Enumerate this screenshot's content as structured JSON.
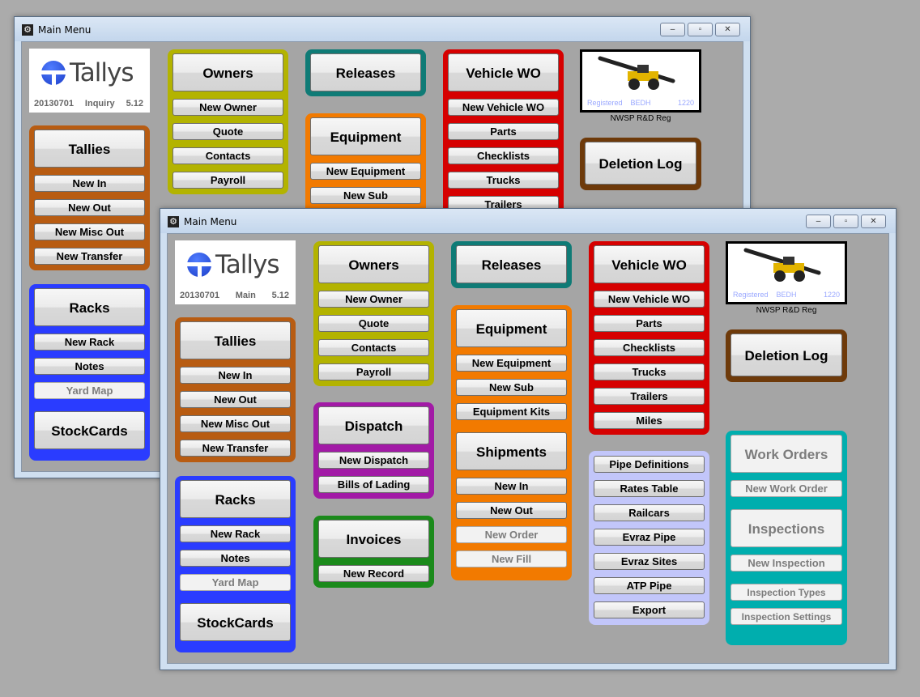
{
  "windows": [
    {
      "title": "Main Menu",
      "logo": {
        "brand": "Tallys",
        "build": "20130701",
        "mode": "Inquiry",
        "version": "5.12"
      }
    },
    {
      "title": "Main Menu",
      "logo": {
        "brand": "Tallys",
        "build": "20130701",
        "mode": "Main",
        "version": "5.12"
      }
    }
  ],
  "window_controls": {
    "minimize": "minimize-icon",
    "maximize": "maximize-icon",
    "close": "close-icon"
  },
  "image_panel": {
    "registered": "Registered",
    "code": "BEDH",
    "number": "1220",
    "caption": "NWSP R&D Reg"
  },
  "groups": [
    {
      "id": "owners",
      "color": "#b3b300",
      "sections": [
        {
          "header": "Owners",
          "items": [
            {
              "label": "New Owner"
            },
            {
              "label": "Quote"
            },
            {
              "label": "Contacts"
            },
            {
              "label": "Payroll"
            }
          ]
        }
      ]
    },
    {
      "id": "releases",
      "color": "#0f7b76",
      "sections": [
        {
          "header": "Releases",
          "items": []
        }
      ]
    },
    {
      "id": "vehicle-wo",
      "color": "#d60000",
      "sections": [
        {
          "header": "Vehicle WO",
          "items": [
            {
              "label": "New Vehicle WO"
            },
            {
              "label": "Parts"
            },
            {
              "label": "Checklists"
            },
            {
              "label": "Trucks"
            },
            {
              "label": "Trailers"
            },
            {
              "label": "Miles"
            }
          ]
        }
      ]
    },
    {
      "id": "tallies",
      "color": "#b85c12",
      "sections": [
        {
          "header": "Tallies",
          "items": [
            {
              "label": "New In"
            },
            {
              "label": "New Out"
            },
            {
              "label": "New Misc Out"
            },
            {
              "label": "New Transfer"
            }
          ]
        }
      ]
    },
    {
      "id": "racks",
      "color": "#2a3cff",
      "sections": [
        {
          "header": "Racks",
          "items": [
            {
              "label": "New Rack"
            },
            {
              "label": "Notes"
            },
            {
              "label": "Yard Map",
              "disabled": true
            }
          ]
        },
        {
          "header": "StockCards",
          "items": []
        }
      ]
    },
    {
      "id": "dispatch",
      "color": "#a21aa6",
      "sections": [
        {
          "header": "Dispatch",
          "items": [
            {
              "label": "New Dispatch"
            },
            {
              "label": "Bills of Lading"
            }
          ]
        }
      ]
    },
    {
      "id": "invoices",
      "color": "#1b8a1b",
      "sections": [
        {
          "header": "Invoices",
          "items": [
            {
              "label": "New Record"
            }
          ]
        }
      ]
    },
    {
      "id": "equipment",
      "color": "#f27a00",
      "sections": [
        {
          "header": "Equipment",
          "items": [
            {
              "label": "New Equipment"
            },
            {
              "label": "New Sub"
            },
            {
              "label": "Equipment Kits"
            }
          ]
        },
        {
          "header": "Shipments",
          "items": [
            {
              "label": "New In"
            },
            {
              "label": "New Out"
            },
            {
              "label": "New Order",
              "disabled": true
            },
            {
              "label": "New Fill",
              "disabled": true
            }
          ]
        }
      ]
    },
    {
      "id": "misc",
      "color": "#c2c6fa",
      "sections": [
        {
          "items": [
            {
              "label": "Pipe Definitions"
            },
            {
              "label": "Rates Table"
            },
            {
              "label": "Railcars"
            },
            {
              "label": "Evraz Pipe"
            },
            {
              "label": "Evraz Sites"
            },
            {
              "label": "ATP Pipe"
            },
            {
              "label": "Export"
            }
          ]
        }
      ]
    },
    {
      "id": "work-orders",
      "color": "#00aeae",
      "sections": [
        {
          "header": "Work Orders",
          "header_disabled": true,
          "items": [
            {
              "label": "New Work Order",
              "disabled": true
            }
          ]
        },
        {
          "header": "Inspections",
          "header_disabled": true,
          "items": [
            {
              "label": "New Inspection",
              "disabled": true
            }
          ]
        },
        {
          "items": [
            {
              "label": "Inspection Types",
              "disabled": true,
              "small": true
            },
            {
              "label": "Inspection Settings",
              "disabled": true,
              "small": true
            }
          ]
        }
      ]
    },
    {
      "id": "deletion-log",
      "color": "#6e3a0a",
      "sections": [
        {
          "header": "Deletion Log",
          "items": []
        }
      ]
    }
  ]
}
